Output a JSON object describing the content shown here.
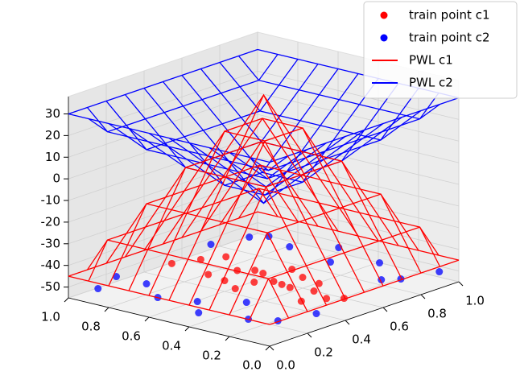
{
  "chart_data": {
    "type": "scatter3d",
    "legend": "upper right",
    "xlim": [
      0,
      1
    ],
    "ylim": [
      0,
      1
    ],
    "zlim": [
      -55,
      38
    ],
    "xticks": [
      {
        "value": 0,
        "label": "0.0"
      },
      {
        "value": 0.2,
        "label": "0.2"
      },
      {
        "value": 0.4,
        "label": "0.4"
      },
      {
        "value": 0.6,
        "label": "0.6"
      },
      {
        "value": 0.8,
        "label": "0.8"
      },
      {
        "value": 1,
        "label": "1.0"
      }
    ],
    "yticks": [
      {
        "value": 0,
        "label": "0.0"
      },
      {
        "value": 0.2,
        "label": "0.2"
      },
      {
        "value": 0.4,
        "label": "0.4"
      },
      {
        "value": 0.6,
        "label": "0.6"
      },
      {
        "value": 0.8,
        "label": "0.8"
      },
      {
        "value": 1,
        "label": "1.0"
      }
    ],
    "zticks": [
      -50,
      -40,
      -30,
      -20,
      -10,
      0,
      10,
      20,
      30
    ],
    "grid": true,
    "series": [
      {
        "name": "train point c1",
        "color": "#ff0000",
        "x": [
          0.45,
          0.5,
          0.55,
          0.4,
          0.6,
          0.48,
          0.52,
          0.35,
          0.65,
          0.5,
          0.42,
          0.58,
          0.46,
          0.54,
          0.38,
          0.62,
          0.5,
          0.44,
          0.56,
          0.49
        ],
        "y": [
          0.5,
          0.45,
          0.55,
          0.6,
          0.4,
          0.35,
          0.65,
          0.5,
          0.5,
          0.25,
          0.7,
          0.3,
          0.15,
          0.85,
          0.2,
          0.8,
          0.1,
          0.9,
          0.6,
          0.4
        ],
        "z": [
          -50,
          -50,
          -50,
          -50,
          -50,
          -50,
          -50,
          -50,
          -50,
          -50,
          -50,
          -50,
          -50,
          -50,
          -50,
          -50,
          -50,
          -50,
          -50,
          -50
        ]
      },
      {
        "name": "train point c2",
        "color": "#0000ff",
        "x": [
          0.1,
          0.2,
          0.9,
          0.85,
          0.15,
          0.8,
          0.05,
          0.95,
          0.3,
          0.7,
          0.1,
          0.9,
          0.25,
          0.75,
          0.05,
          0.95,
          0.2,
          0.8,
          0.15,
          0.85
        ],
        "y": [
          0.2,
          0.8,
          0.3,
          0.7,
          0.5,
          0.1,
          0.9,
          0.55,
          0.05,
          0.95,
          0.65,
          0.85,
          0.35,
          0.15,
          0.4,
          0.05,
          0.95,
          0.45,
          0.1,
          0.9
        ],
        "z": [
          -50,
          -50,
          -50,
          -50,
          -50,
          -50,
          -50,
          -50,
          -50,
          -50,
          -50,
          -50,
          -50,
          -50,
          -50,
          -50,
          -50,
          -50,
          -50,
          -50
        ]
      }
    ],
    "grid_u": [
      0,
      0.1,
      0.2,
      0.3,
      0.4,
      0.5,
      0.6,
      0.7,
      0.8,
      0.9,
      1
    ],
    "surfaces": [
      {
        "name": "PWL c1",
        "color": "#ff0000",
        "z": [
          [
            -45,
            -45,
            -45,
            -45,
            -45,
            -45,
            -45,
            -45,
            -45,
            -45,
            -45
          ],
          [
            -45,
            -29,
            -29,
            -29,
            -29,
            -29,
            -29,
            -29,
            -29,
            -29,
            -45
          ],
          [
            -45,
            -29,
            -13,
            -13,
            -13,
            -13,
            -13,
            -13,
            -13,
            -29,
            -45
          ],
          [
            -45,
            -29,
            -13,
            3,
            3,
            3,
            3,
            3,
            -13,
            -29,
            -45
          ],
          [
            -45,
            -29,
            -13,
            3,
            19,
            19,
            19,
            3,
            -13,
            -29,
            -45
          ],
          [
            -45,
            -29,
            -13,
            3,
            19,
            35,
            19,
            3,
            -13,
            -29,
            -45
          ],
          [
            -45,
            -29,
            -13,
            3,
            19,
            19,
            19,
            3,
            -13,
            -29,
            -45
          ],
          [
            -45,
            -29,
            -13,
            3,
            3,
            3,
            3,
            3,
            -13,
            -29,
            -45
          ],
          [
            -45,
            -29,
            -13,
            -13,
            -13,
            -13,
            -13,
            -13,
            -13,
            -29,
            -45
          ],
          [
            -45,
            -29,
            -29,
            -29,
            -29,
            -29,
            -29,
            -29,
            -29,
            -29,
            -45
          ],
          [
            -45,
            -45,
            -45,
            -45,
            -45,
            -45,
            -45,
            -45,
            -45,
            -45,
            -45
          ]
        ]
      },
      {
        "name": "PWL c2",
        "color": "#0000ff",
        "z": [
          [
            30,
            30,
            30,
            30,
            30,
            30,
            30,
            30,
            30,
            30,
            30
          ],
          [
            30,
            21,
            21,
            21,
            21,
            21,
            21,
            21,
            21,
            21,
            30
          ],
          [
            30,
            21,
            12,
            12,
            12,
            12,
            12,
            12,
            12,
            21,
            30
          ],
          [
            30,
            21,
            12,
            3,
            3,
            3,
            3,
            3,
            12,
            21,
            30
          ],
          [
            30,
            21,
            12,
            3,
            -6,
            -6,
            -6,
            3,
            12,
            21,
            30
          ],
          [
            30,
            21,
            12,
            3,
            -6,
            -15,
            -6,
            3,
            12,
            21,
            30
          ],
          [
            30,
            21,
            12,
            3,
            -6,
            -6,
            -6,
            3,
            12,
            21,
            30
          ],
          [
            30,
            21,
            12,
            3,
            3,
            3,
            3,
            3,
            12,
            21,
            30
          ],
          [
            30,
            21,
            12,
            12,
            12,
            12,
            12,
            12,
            12,
            21,
            30
          ],
          [
            30,
            21,
            21,
            21,
            21,
            21,
            21,
            21,
            21,
            21,
            30
          ],
          [
            30,
            30,
            30,
            30,
            30,
            30,
            30,
            30,
            30,
            30,
            30
          ]
        ]
      }
    ]
  }
}
